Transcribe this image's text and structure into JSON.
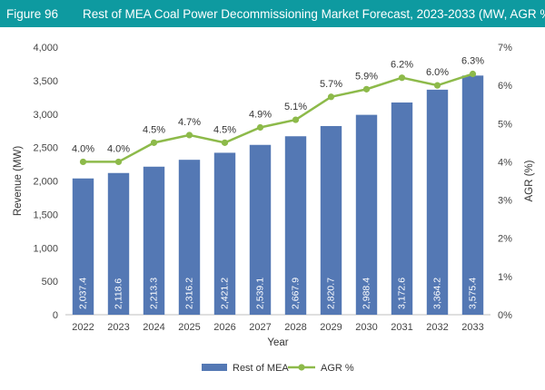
{
  "figure": {
    "label": "Figure 96",
    "title": "Rest of MEA Coal Power Decommissioning Market Forecast, 2023-2033 (MW, AGR %)"
  },
  "colors": {
    "header_bg": "#0e9aa0",
    "bar": "#5478b4",
    "line": "#8dba4a"
  },
  "chart_data": {
    "type": "bar",
    "title": "Rest of MEA Coal Power Decommissioning Market Forecast, 2023-2033 (MW, AGR %)",
    "xlabel": "Year",
    "ylabel": "Revenue (MW)",
    "y2label": "AGR (%)",
    "categories": [
      "2022",
      "2023",
      "2024",
      "2025",
      "2026",
      "2027",
      "2028",
      "2029",
      "2030",
      "2031",
      "2032",
      "2033"
    ],
    "ylim": [
      0,
      4000
    ],
    "y2lim": [
      0,
      7
    ],
    "y_ticks": [
      "0",
      "500",
      "1,000",
      "1,500",
      "2,000",
      "2,500",
      "3,000",
      "3,500",
      "4,000"
    ],
    "y2_ticks": [
      "0%",
      "1%",
      "2%",
      "3%",
      "4%",
      "5%",
      "6%",
      "7%"
    ],
    "grid": false,
    "legend_position": "bottom",
    "series": [
      {
        "name": "Rest of MEA",
        "type": "bar",
        "axis": "left",
        "values": [
          2037.4,
          2118.6,
          2213.3,
          2316.2,
          2421.2,
          2539.1,
          2667.9,
          2820.7,
          2988.4,
          3172.6,
          3364.2,
          3575.4
        ],
        "labels": [
          "2,037.4",
          "2,118.6",
          "2,213.3",
          "2,316.2",
          "2,421.2",
          "2,539.1",
          "2,667.9",
          "2,820.7",
          "2,988.4",
          "3,172.6",
          "3,364.2",
          "3,575.4"
        ]
      },
      {
        "name": "AGR %",
        "type": "line",
        "axis": "right",
        "values": [
          4.0,
          4.0,
          4.5,
          4.7,
          4.5,
          4.9,
          5.1,
          5.7,
          5.9,
          6.2,
          6.0,
          6.3
        ],
        "labels": [
          "4.0%",
          "4.0%",
          "4.5%",
          "4.7%",
          "4.5%",
          "4.9%",
          "5.1%",
          "5.7%",
          "5.9%",
          "6.2%",
          "6.0%",
          "6.3%"
        ]
      }
    ]
  }
}
